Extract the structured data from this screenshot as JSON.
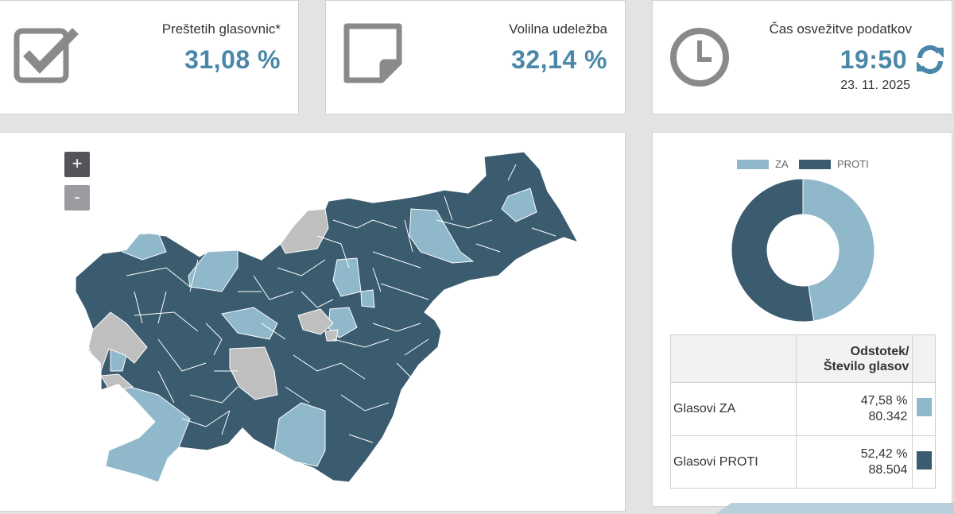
{
  "stats": {
    "counted": {
      "label": "Preštetih glasovnic*",
      "value": "31,08 %",
      "icon": "checkbox-icon"
    },
    "turnout": {
      "label": "Volilna udeležba",
      "value": "32,14 %",
      "icon": "note-icon"
    },
    "refresh": {
      "label": "Čas osvežitve podatkov",
      "time": "19:50",
      "date": "23. 11. 2025",
      "icon": "clock-icon"
    }
  },
  "map": {
    "zoom_in": "+",
    "zoom_out": "-"
  },
  "colors": {
    "za": "#8fb8cb",
    "proti": "#3b5b6e",
    "no_data": "#bfbfbf",
    "accent": "#4a87a8"
  },
  "chart_data": {
    "type": "pie",
    "donut": true,
    "categories": [
      "ZA",
      "PROTI"
    ],
    "values": [
      47.58,
      52.42
    ],
    "legend": [
      "ZA",
      "PROTI"
    ],
    "legend_position": "top"
  },
  "results": {
    "header": [
      "Odstotek/",
      "Število glasov"
    ],
    "rows": [
      {
        "label": "Glasovi ZA",
        "percent": "47,58 %",
        "votes": "80.342",
        "color": "#8fb8cb"
      },
      {
        "label": "Glasovi PROTI",
        "percent": "52,42 %",
        "votes": "88.504",
        "color": "#3b5b6e"
      }
    ]
  }
}
